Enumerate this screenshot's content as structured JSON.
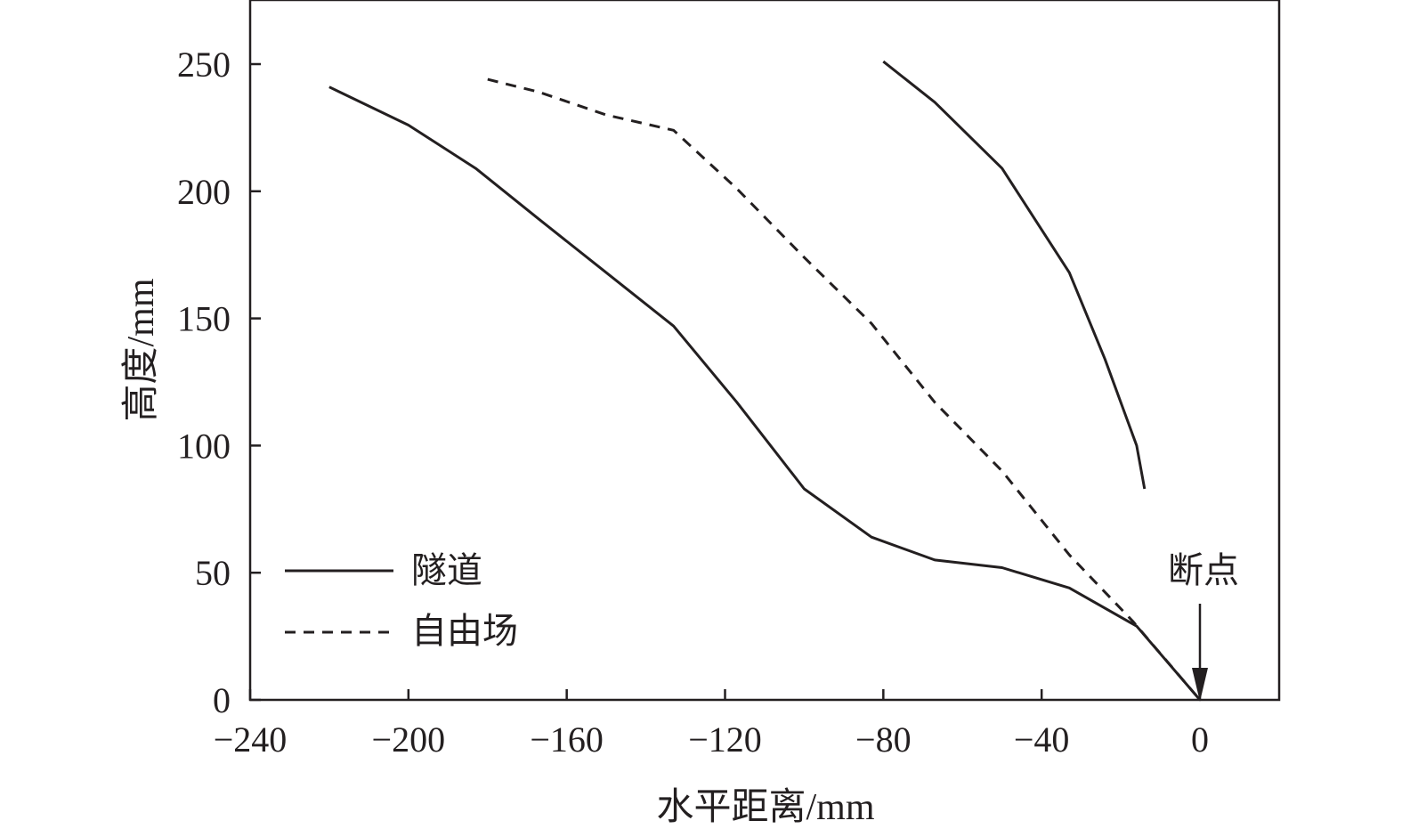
{
  "chart_data": {
    "type": "line",
    "title": "",
    "xlabel": "水平距离/mm",
    "ylabel": "高度/mm",
    "xlim": [
      -240,
      20
    ],
    "ylim": [
      0,
      275
    ],
    "x_ticks": [
      -240,
      -200,
      -160,
      -120,
      -80,
      -40,
      0
    ],
    "x_tick_labels": [
      "−240",
      "−200",
      "−160",
      "−120",
      "−80",
      "−40",
      "0"
    ],
    "y_ticks": [
      0,
      50,
      100,
      150,
      200,
      250
    ],
    "y_tick_labels": [
      "0",
      "50",
      "100",
      "150",
      "200",
      "250"
    ],
    "grid": false,
    "legend_position": "lower-left",
    "series": [
      {
        "name": "隧道",
        "style": "solid",
        "x": [
          -220,
          -200,
          -183,
          -167,
          -150,
          -133,
          -117,
          -100,
          -83,
          -67,
          -50,
          -33,
          -16,
          0
        ],
        "y": [
          241,
          226,
          209,
          189,
          168,
          147,
          117,
          83,
          64,
          55,
          52,
          44,
          29,
          0
        ]
      },
      {
        "name": "自由场",
        "style": "dashed",
        "x": [
          -180,
          -167,
          -150,
          -133,
          -117,
          -100,
          -83,
          -67,
          -50,
          -33,
          -17,
          0
        ],
        "y": [
          244,
          239,
          230,
          224,
          201,
          174,
          148,
          117,
          90,
          57,
          31,
          0
        ]
      },
      {
        "name": "",
        "style": "solid",
        "x": [
          -80,
          -67,
          -50,
          -33,
          -24,
          -16,
          -14
        ],
        "y": [
          251,
          235,
          209,
          168,
          134,
          100,
          83
        ]
      }
    ],
    "annotations": [
      {
        "text": "断点",
        "x": 0,
        "y": 0,
        "arrow": true
      }
    ],
    "colors": {
      "line": "#231f20",
      "axis": "#231f20",
      "background": "#ffffff"
    }
  }
}
